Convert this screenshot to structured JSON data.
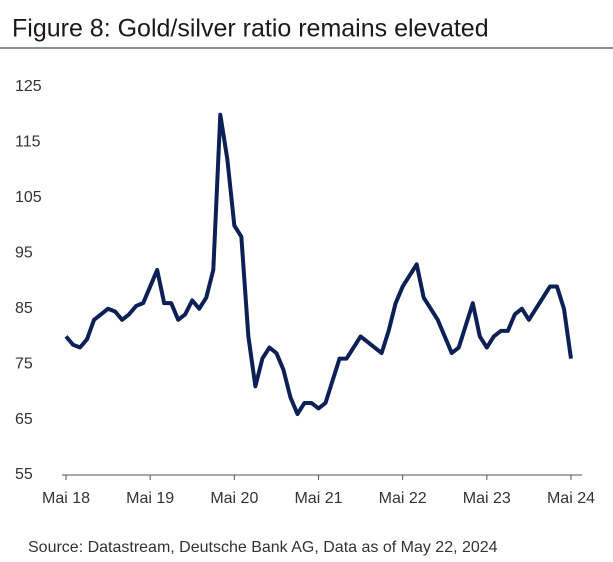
{
  "chart_data": {
    "type": "line",
    "title": "Figure 8: Gold/silver ratio remains elevated",
    "source": "Source: Datastream, Deutsche Bank AG, Data as of May 22, 2024",
    "x": [
      "2018-05",
      "2018-06",
      "2018-07",
      "2018-08",
      "2018-09",
      "2018-10",
      "2018-11",
      "2018-12",
      "2019-01",
      "2019-02",
      "2019-03",
      "2019-04",
      "2019-05",
      "2019-06",
      "2019-07",
      "2019-08",
      "2019-09",
      "2019-10",
      "2019-11",
      "2019-12",
      "2020-01",
      "2020-02",
      "2020-03",
      "2020-04",
      "2020-05",
      "2020-06",
      "2020-07",
      "2020-08",
      "2020-09",
      "2020-10",
      "2020-11",
      "2020-12",
      "2021-01",
      "2021-02",
      "2021-03",
      "2021-04",
      "2021-05",
      "2021-06",
      "2021-07",
      "2021-08",
      "2021-09",
      "2021-10",
      "2021-11",
      "2021-12",
      "2022-01",
      "2022-02",
      "2022-03",
      "2022-04",
      "2022-05",
      "2022-06",
      "2022-07",
      "2022-08",
      "2022-09",
      "2022-10",
      "2022-11",
      "2022-12",
      "2023-01",
      "2023-02",
      "2023-03",
      "2023-04",
      "2023-05",
      "2023-06",
      "2023-07",
      "2023-08",
      "2023-09",
      "2023-10",
      "2023-11",
      "2023-12",
      "2024-01",
      "2024-02",
      "2024-03",
      "2024-04",
      "2024-05"
    ],
    "series": [
      {
        "color": "#0c2056",
        "values": [
          80,
          78.5,
          78,
          79.5,
          83,
          84,
          85,
          84.5,
          83,
          84,
          85.5,
          86,
          89,
          92,
          86,
          86,
          83,
          84,
          86.5,
          85,
          87,
          92,
          120,
          112,
          100,
          98,
          80,
          71,
          76,
          78,
          77,
          74,
          69,
          66,
          68,
          68,
          67,
          68,
          72,
          76,
          76,
          78,
          80,
          79,
          78,
          77,
          81,
          86,
          89,
          91,
          93,
          87,
          85,
          83,
          80,
          77,
          78,
          82,
          86,
          80,
          78,
          80,
          81,
          81,
          84,
          85,
          83,
          85,
          87,
          89,
          89,
          85,
          76
        ]
      }
    ],
    "xlim": [
      "2018-05",
      "2024-06"
    ],
    "xticks": [
      {
        "value": "2018-05",
        "label": "Mai 18"
      },
      {
        "value": "2019-05",
        "label": "Mai 19"
      },
      {
        "value": "2020-05",
        "label": "Mai 20"
      },
      {
        "value": "2021-05",
        "label": "Mai 21"
      },
      {
        "value": "2022-05",
        "label": "Mai 22"
      },
      {
        "value": "2023-05",
        "label": "Mai 23"
      },
      {
        "value": "2024-05",
        "label": "Mai 24"
      }
    ],
    "ylim": [
      55,
      125
    ],
    "yticks": [
      55,
      65,
      75,
      85,
      95,
      105,
      115,
      125
    ],
    "grid": false
  }
}
